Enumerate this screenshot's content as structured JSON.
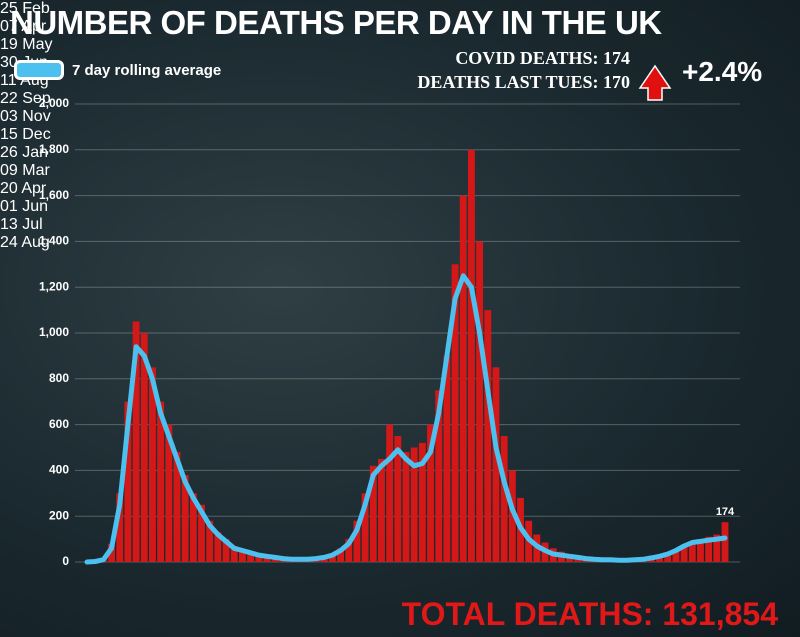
{
  "chart_data": {
    "type": "combo",
    "title": "NUMBER OF DEATHS PER DAY IN THE UK",
    "stat_today": "COVID DEATHS: 174",
    "stat_last_week": "DEATHS LAST TUES: 170",
    "change": "+2.4%",
    "total": "TOTAL DEATHS: 131,854",
    "annotation": "174",
    "categories": [
      "25 Feb",
      null,
      null,
      null,
      null,
      null,
      "07 Apr",
      null,
      null,
      null,
      null,
      null,
      "19 May",
      null,
      null,
      null,
      null,
      null,
      "30 Jun",
      null,
      null,
      null,
      null,
      null,
      "11 Aug",
      null,
      null,
      null,
      null,
      null,
      "22 Sep",
      null,
      null,
      null,
      null,
      null,
      "03 Nov",
      null,
      null,
      null,
      null,
      null,
      "15 Dec",
      null,
      null,
      null,
      null,
      null,
      "26 Jan",
      null,
      null,
      null,
      null,
      null,
      "09 Mar",
      null,
      null,
      null,
      null,
      null,
      "20 Apr",
      null,
      null,
      null,
      null,
      null,
      "01 Jun",
      null,
      null,
      null,
      null,
      null,
      "13 Jul",
      null,
      null,
      null,
      null,
      null,
      "24 Aug"
    ],
    "series": [
      {
        "type": "bar",
        "color": "#d41818",
        "values": [
          0,
          1,
          15,
          80,
          300,
          700,
          1050,
          1000,
          850,
          700,
          600,
          480,
          380,
          300,
          250,
          180,
          130,
          100,
          70,
          55,
          45,
          35,
          25,
          20,
          18,
          14,
          12,
          14,
          18,
          25,
          35,
          60,
          100,
          180,
          300,
          420,
          450,
          600,
          550,
          480,
          500,
          520,
          600,
          750,
          900,
          1300,
          1600,
          1800,
          1400,
          1100,
          850,
          550,
          400,
          280,
          180,
          120,
          85,
          60,
          45,
          35,
          30,
          25,
          20,
          15,
          12,
          12,
          10,
          10,
          12,
          15,
          22,
          30,
          45,
          65,
          85,
          100,
          110,
          120,
          174
        ]
      },
      {
        "type": "line",
        "name": "7 day rolling average",
        "color": "#4cc0ee",
        "values": [
          0,
          2,
          10,
          60,
          250,
          600,
          940,
          900,
          800,
          650,
          550,
          450,
          350,
          280,
          220,
          160,
          120,
          90,
          60,
          50,
          40,
          30,
          25,
          20,
          15,
          12,
          12,
          12,
          15,
          20,
          30,
          50,
          80,
          140,
          250,
          380,
          420,
          450,
          490,
          450,
          420,
          430,
          480,
          650,
          900,
          1150,
          1250,
          1200,
          1000,
          750,
          500,
          350,
          230,
          150,
          100,
          70,
          50,
          35,
          30,
          25,
          20,
          15,
          12,
          10,
          10,
          8,
          8,
          10,
          12,
          18,
          25,
          35,
          50,
          70,
          85,
          90,
          95,
          100,
          105
        ]
      }
    ],
    "ylim": [
      0,
      2000
    ],
    "yticks": [
      0,
      200,
      400,
      600,
      800,
      {
        "value": 1000,
        "label": "1,000"
      },
      {
        "value": 1200,
        "label": "1,200"
      },
      {
        "value": 1400,
        "label": "1,400"
      },
      {
        "value": 1600,
        "label": "1,600"
      },
      {
        "value": 1800,
        "label": "1,800"
      },
      {
        "value": 2000,
        "label": "2,000"
      }
    ],
    "grid": true
  }
}
